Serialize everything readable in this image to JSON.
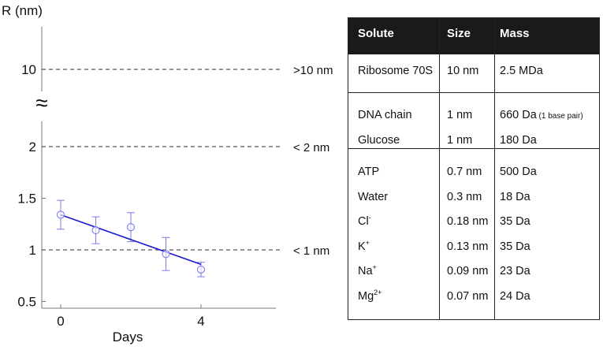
{
  "chart_data": {
    "type": "scatter",
    "ylabel": "R (nm)",
    "xlabel": "Days",
    "x_ticks": [
      "0",
      "4"
    ],
    "y_ticks_lower": [
      "0.5",
      "1",
      "1.5",
      "2"
    ],
    "y_ticks_upper": [
      "10"
    ],
    "axis_break_symbol": "≈",
    "xlim": [
      -0.5,
      6.4
    ],
    "ylim_lower": [
      0.5,
      2.3
    ],
    "points": [
      {
        "x": 0,
        "y": 1.34,
        "err": 0.14
      },
      {
        "x": 1,
        "y": 1.19,
        "err": 0.13
      },
      {
        "x": 2,
        "y": 1.22,
        "err": 0.14
      },
      {
        "x": 3,
        "y": 0.96,
        "err": 0.16
      },
      {
        "x": 4,
        "y": 0.81,
        "err": 0.07
      }
    ],
    "fit_line": {
      "x": [
        0,
        4
      ],
      "y": [
        1.34,
        0.86
      ]
    },
    "reference_lines": [
      {
        "y": 10,
        "label": ">10 nm"
      },
      {
        "y": 2,
        "label": "< 2 nm"
      },
      {
        "y": 1,
        "label": "< 1 nm"
      }
    ],
    "colors": {
      "points": "#7b7be8",
      "fit": "#1c1ccf",
      "reference": "#555555"
    }
  },
  "table": {
    "headers": [
      "Solute",
      "Size",
      "Mass"
    ],
    "groups": [
      {
        "rows": [
          {
            "solute": "Ribosome 70S",
            "sup": "",
            "size": "10 nm",
            "mass": "2.5 MDa",
            "note": ""
          }
        ]
      },
      {
        "rows": [
          {
            "solute": "DNA chain",
            "sup": "",
            "size": "1 nm",
            "mass": "660 Da",
            "note": "(1 base pair)"
          },
          {
            "solute": "Glucose",
            "sup": "",
            "size": "1 nm",
            "mass": "180 Da",
            "note": ""
          }
        ]
      },
      {
        "rows": [
          {
            "solute": "ATP",
            "sup": "",
            "size": "0.7 nm",
            "mass": "500 Da",
            "note": ""
          },
          {
            "solute": "Water",
            "sup": "",
            "size": "0.3 nm",
            "mass": "18 Da",
            "note": ""
          },
          {
            "solute": "Cl",
            "sup": "-",
            "size": "0.18 nm",
            "mass": "35 Da",
            "note": ""
          },
          {
            "solute": "K",
            "sup": "+",
            "size": "0.13 nm",
            "mass": "35 Da",
            "note": ""
          },
          {
            "solute": "Na",
            "sup": "+",
            "size": "0.09 nm",
            "mass": "23 Da",
            "note": ""
          },
          {
            "solute": "Mg",
            "sup": "2+",
            "size": "0.07 nm",
            "mass": "24 Da",
            "note": ""
          }
        ]
      }
    ],
    "colors": {
      "header_bg": "#1a1a1a",
      "header_text": "#ffffff"
    }
  }
}
